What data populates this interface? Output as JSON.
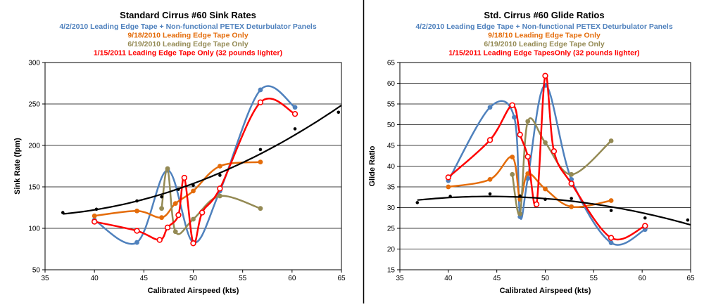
{
  "chart_data": [
    {
      "type": "line",
      "title": "Standard Cirrus #60 Sink Rates",
      "subtitles": [
        {
          "text": "4/2/2010 Leading Edge Tape + Non-functional PETEX Deturbulator Panels",
          "color": "#4f81bd"
        },
        {
          "text": "9/18/2010 Leading Edge Tape Only",
          "color": "#e46c0a"
        },
        {
          "text": "6/19/2010 Leading Edge Tape Only",
          "color": "#948a54"
        },
        {
          "text": "1/15/2011 Leading Edge Tape Only (32 pounds lighter)",
          "color": "#ff0000"
        }
      ],
      "xlabel": "Calibrated Airspeed (kts)",
      "ylabel": "Sink Rate (fpm)",
      "xlim": [
        35,
        65
      ],
      "ylim": [
        50,
        300
      ],
      "xticks": [
        35,
        40,
        45,
        50,
        55,
        60,
        65
      ],
      "yticks": [
        50,
        100,
        150,
        200,
        250,
        300
      ],
      "xtick_labels": [
        "35",
        "40",
        "45",
        "50",
        "55",
        "60",
        "65"
      ],
      "ytick_labels": [
        "50",
        "100",
        "150",
        "200",
        "250",
        "300"
      ],
      "grid": "horizontal",
      "legend": "none",
      "series": [
        {
          "color": "#4f81bd",
          "marker": "filled",
          "smooth": true,
          "x": [
            40.0,
            44.3,
            47.4,
            50.0,
            52.7,
            56.8,
            60.3
          ],
          "y": [
            110,
            83,
            170,
            83,
            145,
            267,
            246
          ]
        },
        {
          "color": "#e46c0a",
          "marker": "filled",
          "smooth": true,
          "x": [
            40.0,
            44.3,
            46.8,
            48.2,
            50.0,
            52.7,
            56.8
          ],
          "y": [
            115,
            121,
            113,
            130,
            145,
            175,
            180
          ]
        },
        {
          "color": "#948a54",
          "marker": "filled",
          "smooth": true,
          "x": [
            46.8,
            47.4,
            48.2,
            50.0,
            52.7,
            56.8
          ],
          "y": [
            124,
            172,
            96,
            111,
            139,
            124
          ]
        },
        {
          "color": "#ff0000",
          "marker": "open",
          "smooth": true,
          "x": [
            40.0,
            44.3,
            46.6,
            47.4,
            48.5,
            49.1,
            50.0,
            50.9,
            52.7,
            56.8,
            60.3
          ],
          "y": [
            108,
            97,
            86,
            101,
            116,
            161,
            82,
            119,
            148,
            252,
            238
          ]
        },
        {
          "color": "#000000",
          "marker": "dot",
          "trend": "polynomial",
          "trend_order": 2,
          "x": [
            36.8,
            40.2,
            44.3,
            46.8,
            48.5,
            50.0,
            52.7,
            56.8,
            60.3,
            64.7
          ],
          "y": [
            119,
            123,
            133,
            138,
            147,
            152,
            164,
            195,
            220,
            240
          ]
        }
      ]
    },
    {
      "type": "line",
      "title": "Std. Cirrus #60 Glide Ratios",
      "subtitles": [
        {
          "text": "4/2/2010 Leading Edge Tape + Non-functional PETEX Deturbulator Panels",
          "color": "#4f81bd"
        },
        {
          "text": "9/18/10 Leading Edge Tape Only",
          "color": "#e46c0a"
        },
        {
          "text": "6/19/2010 Leading Edge Tape Only",
          "color": "#948a54"
        },
        {
          "text": "1/15/2011 Leading Edge TapesOnly (32 pounds lighter)",
          "color": "#ff0000"
        }
      ],
      "xlabel": "Calibrated Airspeed (kts)",
      "ylabel": "Glide Ratio",
      "xlim": [
        35,
        65
      ],
      "ylim": [
        15,
        65
      ],
      "xticks": [
        35,
        40,
        45,
        50,
        55,
        60,
        65
      ],
      "yticks": [
        15,
        20,
        25,
        30,
        35,
        40,
        45,
        50,
        55,
        60,
        65
      ],
      "xtick_labels": [
        "35",
        "40",
        "45",
        "50",
        "55",
        "60",
        "65"
      ],
      "ytick_labels": [
        "15",
        "20",
        "25",
        "30",
        "35",
        "40",
        "45",
        "50",
        "55",
        "60",
        "65"
      ],
      "grid": "horizontal",
      "legend": "none",
      "series": [
        {
          "color": "#4f81bd",
          "marker": "filled",
          "smooth": true,
          "x": [
            40.0,
            44.3,
            46.8,
            47.4,
            48.2,
            50.0,
            52.7,
            56.8,
            60.3
          ],
          "y": [
            36.5,
            54.2,
            51.8,
            27.8,
            37,
            59.5,
            36.8,
            21.5,
            24.7
          ]
        },
        {
          "color": "#e46c0a",
          "marker": "filled",
          "smooth": true,
          "x": [
            40.0,
            44.3,
            46.6,
            47.4,
            48.2,
            50.0,
            52.7,
            56.8
          ],
          "y": [
            35,
            36.8,
            42.2,
            32,
            38.2,
            34.5,
            30.2,
            31.7
          ]
        },
        {
          "color": "#948a54",
          "marker": "filled",
          "smooth": true,
          "x": [
            46.6,
            47.4,
            48.2,
            50.0,
            52.7,
            56.8
          ],
          "y": [
            38,
            28.5,
            50.8,
            45.7,
            38,
            46.1
          ]
        },
        {
          "color": "#ff0000",
          "marker": "open",
          "smooth": true,
          "x": [
            40.0,
            44.3,
            46.6,
            47.4,
            48.2,
            49.1,
            50.0,
            50.9,
            52.7,
            56.8,
            60.3
          ],
          "y": [
            37.3,
            46.3,
            54.7,
            47.6,
            42.3,
            30.8,
            61.8,
            43.6,
            35.8,
            22.7,
            25.6
          ]
        },
        {
          "color": "#000000",
          "marker": "dot",
          "trend": "polynomial",
          "trend_order": 2,
          "x": [
            36.8,
            40.2,
            44.3,
            47.4,
            50.0,
            52.7,
            56.8,
            60.3,
            64.7
          ],
          "y": [
            31.2,
            32.7,
            33.3,
            32.8,
            32,
            32.2,
            29.3,
            27.5,
            27
          ]
        }
      ]
    }
  ]
}
